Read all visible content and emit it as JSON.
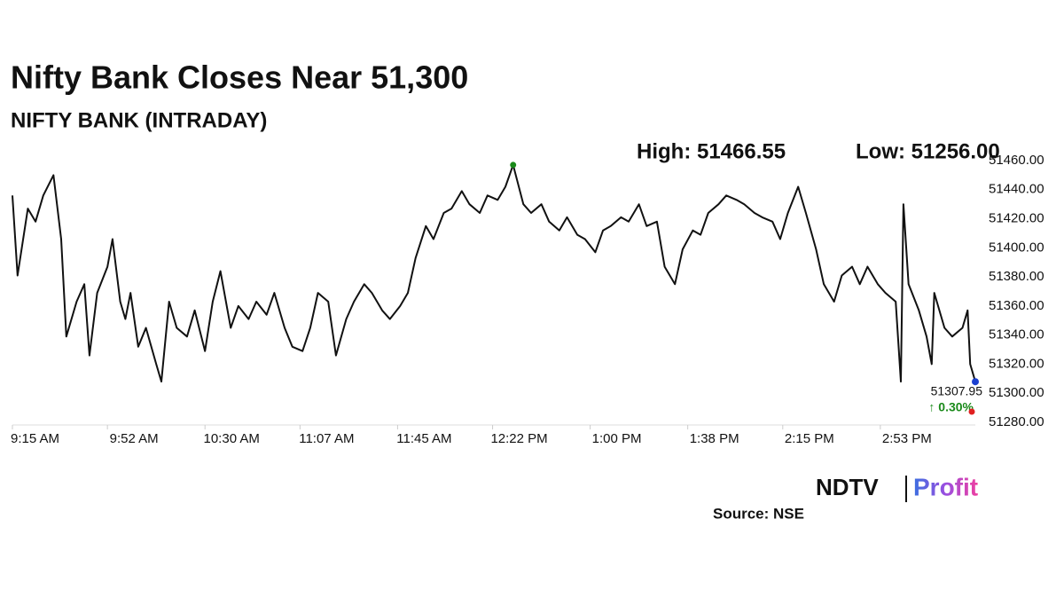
{
  "chart_data": {
    "type": "line",
    "title": "Nifty Bank Closes Near 51,300",
    "subtitle": "NIFTY BANK (INTRADAY)",
    "high_label": "High: 51466.55",
    "low_label": "Low: 51256.00",
    "last_label": "51307.95",
    "change_label": "↑ 0.30%",
    "source": "Source: NSE",
    "logo_main": "NDTV",
    "logo_sub": "Profit",
    "color": "#111111",
    "x": [
      555,
      557,
      561,
      564,
      567,
      571,
      574,
      576,
      580,
      583,
      585,
      588,
      592,
      594,
      597,
      599,
      601,
      604,
      607,
      611,
      613,
      616,
      619,
      623,
      626,
      630,
      633,
      636,
      640,
      643,
      647,
      650,
      654,
      657,
      661,
      664,
      668,
      671,
      674,
      678,
      681,
      685,
      688,
      692,
      695,
      699,
      702,
      706,
      709,
      712,
      716,
      719,
      723,
      726,
      730,
      733,
      737,
      740,
      744,
      747,
      750,
      754,
      757,
      761,
      764,
      768,
      771,
      775,
      778,
      782,
      785,
      788,
      792,
      795,
      799,
      802,
      806,
      809,
      813,
      816,
      820,
      823,
      826,
      830,
      833,
      837,
      840,
      844,
      847,
      851,
      854,
      857,
      861,
      864,
      868,
      871,
      875,
      878,
      882,
      885,
      888,
      892,
      895,
      899,
      901,
      902,
      904,
      908,
      911,
      913,
      914,
      918,
      921,
      925,
      927,
      928,
      930
    ],
    "values": [
      51436,
      51381,
      51427,
      51418,
      51436,
      51450,
      51406,
      51339,
      51363,
      51375,
      51326,
      51369,
      51387,
      51406,
      51363,
      51351,
      51369,
      51332,
      51345,
      51320,
      51308,
      51363,
      51345,
      51339,
      51357,
      51329,
      51363,
      51384,
      51345,
      51360,
      51351,
      51363,
      51354,
      51369,
      51345,
      51332,
      51329,
      51345,
      51369,
      51363,
      51326,
      51351,
      51363,
      51375,
      51369,
      51357,
      51351,
      51360,
      51369,
      51393,
      51415,
      51406,
      51424,
      51427,
      51439,
      51430,
      51424,
      51436,
      51433,
      51442,
      51457,
      51430,
      51424,
      51430,
      51418,
      51412,
      51421,
      51409,
      51406,
      51397,
      51412,
      51415,
      51421,
      51418,
      51430,
      51415,
      51418,
      51387,
      51375,
      51399,
      51412,
      51409,
      51424,
      51430,
      51436,
      51433,
      51430,
      51424,
      51421,
      51418,
      51406,
      51424,
      51442,
      51424,
      51399,
      51375,
      51363,
      51381,
      51387,
      51375,
      51387,
      51375,
      51369,
      51363,
      51308,
      51430,
      51375,
      51357,
      51339,
      51320,
      51369,
      51345,
      51339,
      51345,
      51357,
      51320,
      51307.95
    ],
    "xlim": [
      555,
      930
    ],
    "xticks": [
      {
        "value": 555,
        "label": "9:15 AM"
      },
      {
        "value": 592,
        "label": "9:52 AM"
      },
      {
        "value": 630,
        "label": "10:30 AM"
      },
      {
        "value": 667,
        "label": "11:07 AM"
      },
      {
        "value": 705,
        "label": "11:45 AM"
      },
      {
        "value": 742,
        "label": "12:22 PM"
      },
      {
        "value": 780,
        "label": "1:00 PM"
      },
      {
        "value": 818,
        "label": "1:38 PM"
      },
      {
        "value": 855,
        "label": "2:15 PM"
      },
      {
        "value": 893,
        "label": "2:53 PM"
      }
    ],
    "ylim": [
      51280,
      51460
    ],
    "yticks": [
      {
        "value": 51280,
        "label": "51280.00"
      },
      {
        "value": 51300,
        "label": "51300.00"
      },
      {
        "value": 51320,
        "label": "51320.00"
      },
      {
        "value": 51340,
        "label": "51340.00"
      },
      {
        "value": 51360,
        "label": "51360.00"
      },
      {
        "value": 51380,
        "label": "51380.00"
      },
      {
        "value": 51400,
        "label": "51400.00"
      },
      {
        "value": 51420,
        "label": "51420.00"
      },
      {
        "value": 51440,
        "label": "51440.00"
      },
      {
        "value": 51460,
        "label": "51460.00"
      }
    ],
    "grid": false
  }
}
